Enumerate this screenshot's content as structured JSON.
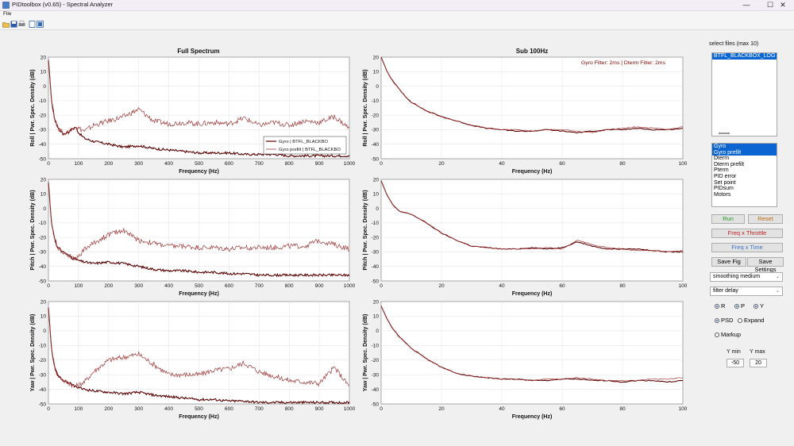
{
  "window": {
    "title": "PIDtoolbox (v0.65) - Spectral Analyzer",
    "minimize": "—",
    "maximize": "☐",
    "close": "✕"
  },
  "menu": {
    "file": "File"
  },
  "toolbar": {
    "icons": [
      "open-icon",
      "save-icon",
      "print-icon",
      "link-plot-icon",
      "dock-icon"
    ]
  },
  "plots": {
    "full_title": "Full Spectrum",
    "sub_title": "Sub 100Hz",
    "xlabel": "Frequency (Hz)",
    "ylabels": [
      "Roll  |  Pwr. Spec. Density (dB)",
      "Pitch  |  Pwr. Spec. Density (dB)",
      "Yaw  |  Pwr. Spec. Density (dB)"
    ],
    "filter_note": "Gyro Filter: 2ms | Dterm Filter: 2ms",
    "legend": [
      "Gyro | BTFL_BLACKBO",
      "Gyro prefilt | BTFL_BLACKBO"
    ],
    "full_xticks": [
      "0",
      "100",
      "200",
      "300",
      "400",
      "500",
      "600",
      "700",
      "800",
      "900",
      "1000"
    ],
    "sub_xticks": [
      "0",
      "20",
      "40",
      "60",
      "80",
      "100"
    ],
    "yticks": [
      "20",
      "10",
      "0",
      "-10",
      "-20",
      "-30",
      "-40",
      "-50"
    ]
  },
  "colors": {
    "gyro": "#5a0000",
    "prefilt": "#a03838",
    "selected": "#0a64d2",
    "run": "#1f9a1f",
    "reset": "#c06a10",
    "freq_throttle": "#c41e1e",
    "freq_time": "#3f73c8"
  },
  "chart_data": [
    {
      "type": "line",
      "title": "Full Spectrum",
      "xlabel": "Frequency (Hz)",
      "ylabel": "Roll  |  Pwr. Spec. Density (dB)",
      "xlim": [
        0,
        1000
      ],
      "ylim": [
        -50,
        20
      ],
      "grid": true,
      "legend": "bottom-right",
      "x": [
        0,
        5,
        10,
        20,
        30,
        50,
        70,
        90,
        100,
        120,
        150,
        200,
        250,
        300,
        350,
        400,
        450,
        500,
        550,
        600,
        650,
        700,
        750,
        800,
        850,
        900,
        950,
        1000
      ],
      "series": [
        {
          "name": "Gyro | BTFL_BLACKBO",
          "values": [
            18,
            5,
            -10,
            -22,
            -28,
            -33,
            -31,
            -28,
            -32,
            -36,
            -38,
            -40,
            -42,
            -41,
            -43,
            -44,
            -45,
            -46,
            -46,
            -46,
            -47,
            -47,
            -47,
            -48,
            -48,
            -48,
            -48,
            -48
          ]
        },
        {
          "name": "Gyro prefilt | BTFL_BLACKBO",
          "values": [
            18,
            5,
            -10,
            -22,
            -28,
            -33,
            -31,
            -27,
            -29,
            -31,
            -27,
            -24,
            -21,
            -16,
            -24,
            -26,
            -25,
            -26,
            -25,
            -26,
            -22,
            -27,
            -25,
            -27,
            -24,
            -25,
            -21,
            -29
          ]
        }
      ]
    },
    {
      "type": "line",
      "title": "Sub 100Hz",
      "xlabel": "Frequency (Hz)",
      "ylabel": "",
      "xlim": [
        0,
        100
      ],
      "ylim": [
        -50,
        20
      ],
      "grid": true,
      "x": [
        0,
        2,
        4,
        6,
        8,
        10,
        15,
        20,
        25,
        30,
        35,
        40,
        45,
        50,
        55,
        60,
        65,
        70,
        75,
        80,
        85,
        90,
        95,
        100
      ],
      "series": [
        {
          "name": "Gyro",
          "values": [
            20,
            10,
            3,
            -2,
            -7,
            -11,
            -17,
            -21,
            -24,
            -27,
            -29,
            -30,
            -31,
            -31,
            -30,
            -31,
            -32,
            -31,
            -30,
            -30,
            -29,
            -30,
            -30,
            -29
          ]
        },
        {
          "name": "Gyro prefilt",
          "values": [
            20,
            10,
            3,
            -2,
            -7,
            -11,
            -17,
            -21,
            -24,
            -27,
            -29,
            -30,
            -30,
            -31,
            -30,
            -30,
            -31,
            -32,
            -30,
            -29,
            -28,
            -29,
            -30,
            -28
          ]
        }
      ]
    },
    {
      "type": "line",
      "title": "",
      "xlabel": "Frequency (Hz)",
      "ylabel": "Pitch  |  Pwr. Spec. Density (dB)",
      "xlim": [
        0,
        1000
      ],
      "ylim": [
        -50,
        20
      ],
      "grid": true,
      "x": [
        0,
        5,
        10,
        20,
        30,
        50,
        70,
        90,
        100,
        120,
        150,
        200,
        250,
        300,
        350,
        400,
        450,
        500,
        550,
        600,
        650,
        700,
        750,
        800,
        850,
        900,
        950,
        1000
      ],
      "series": [
        {
          "name": "Gyro",
          "values": [
            18,
            4,
            -10,
            -20,
            -27,
            -30,
            -33,
            -35,
            -36,
            -37,
            -38,
            -37,
            -38,
            -40,
            -42,
            -43,
            -43,
            -44,
            -44,
            -45,
            -45,
            -46,
            -46,
            -46,
            -46,
            -46,
            -46,
            -46
          ]
        },
        {
          "name": "Gyro prefilt",
          "values": [
            18,
            4,
            -10,
            -20,
            -27,
            -30,
            -33,
            -35,
            -33,
            -28,
            -24,
            -18,
            -15,
            -22,
            -24,
            -26,
            -26,
            -27,
            -27,
            -28,
            -27,
            -27,
            -27,
            -26,
            -26,
            -22,
            -25,
            -28
          ]
        }
      ]
    },
    {
      "type": "line",
      "title": "",
      "xlabel": "Frequency (Hz)",
      "ylabel": "",
      "xlim": [
        0,
        100
      ],
      "ylim": [
        -50,
        20
      ],
      "grid": true,
      "x": [
        0,
        2,
        4,
        6,
        8,
        10,
        15,
        20,
        25,
        30,
        35,
        40,
        45,
        50,
        55,
        60,
        65,
        70,
        75,
        80,
        85,
        90,
        95,
        100
      ],
      "series": [
        {
          "name": "Gyro",
          "values": [
            19,
            9,
            2,
            -2,
            -3,
            -4,
            -10,
            -17,
            -22,
            -26,
            -27,
            -28,
            -28,
            -27,
            -28,
            -27,
            -23,
            -26,
            -28,
            -28,
            -28,
            -29,
            -30,
            -30
          ]
        },
        {
          "name": "Gyro prefilt",
          "values": [
            19,
            9,
            2,
            -2,
            -3,
            -4,
            -10,
            -17,
            -22,
            -26,
            -27,
            -28,
            -28,
            -28,
            -27,
            -28,
            -22,
            -25,
            -27,
            -28,
            -29,
            -29,
            -30,
            -29
          ]
        }
      ]
    },
    {
      "type": "line",
      "title": "",
      "xlabel": "Frequency (Hz)",
      "ylabel": "Yaw  |  Pwr. Spec. Density (dB)",
      "xlim": [
        0,
        1000
      ],
      "ylim": [
        -50,
        20
      ],
      "grid": true,
      "x": [
        0,
        5,
        10,
        20,
        30,
        50,
        70,
        90,
        100,
        120,
        150,
        200,
        250,
        300,
        350,
        400,
        450,
        500,
        550,
        600,
        650,
        700,
        750,
        800,
        850,
        900,
        950,
        1000
      ],
      "series": [
        {
          "name": "Gyro",
          "values": [
            16,
            2,
            -12,
            -24,
            -30,
            -34,
            -36,
            -38,
            -39,
            -40,
            -41,
            -42,
            -43,
            -42,
            -44,
            -45,
            -46,
            -47,
            -47,
            -48,
            -48,
            -49,
            -49,
            -49,
            -49,
            -49,
            -49,
            -49
          ]
        },
        {
          "name": "Gyro prefilt",
          "values": [
            16,
            2,
            -12,
            -24,
            -30,
            -34,
            -36,
            -38,
            -37,
            -35,
            -28,
            -20,
            -18,
            -16,
            -23,
            -30,
            -30,
            -30,
            -27,
            -26,
            -22,
            -28,
            -31,
            -34,
            -35,
            -36,
            -25,
            -38
          ]
        }
      ]
    },
    {
      "type": "line",
      "title": "",
      "xlabel": "Frequency (Hz)",
      "ylabel": "",
      "xlim": [
        0,
        100
      ],
      "ylim": [
        -50,
        20
      ],
      "grid": true,
      "x": [
        0,
        2,
        4,
        6,
        8,
        10,
        15,
        20,
        25,
        30,
        35,
        40,
        45,
        50,
        55,
        60,
        65,
        70,
        75,
        80,
        85,
        90,
        95,
        100
      ],
      "series": [
        {
          "name": "Gyro",
          "values": [
            17,
            8,
            1,
            -4,
            -8,
            -12,
            -19,
            -25,
            -29,
            -31,
            -32,
            -33,
            -33,
            -34,
            -34,
            -33,
            -33,
            -34,
            -34,
            -35,
            -34,
            -34,
            -35,
            -34
          ]
        },
        {
          "name": "Gyro prefilt",
          "values": [
            17,
            8,
            1,
            -4,
            -8,
            -12,
            -19,
            -25,
            -29,
            -31,
            -32,
            -33,
            -33,
            -34,
            -33,
            -33,
            -32,
            -33,
            -34,
            -34,
            -34,
            -33,
            -33,
            -32
          ]
        }
      ]
    }
  ],
  "side": {
    "files_label": "select files (max 10)",
    "files": [
      "BTFL_BLACKBOX_LOG"
    ],
    "signals": [
      "Gyro",
      "Gyro prefilt",
      "Dterm",
      "Dterm prefilt",
      "Pterm",
      "PID error",
      "Set point",
      "PIDsum",
      "Motors"
    ],
    "signals_selected": [
      0,
      1
    ],
    "run": "Run",
    "reset": "Reset",
    "freq_throttle": "Freq x Throttle",
    "freq_time": "Freq x Time",
    "save_fig": "Save Fig",
    "save_settings": "Save Settings",
    "smoothing": "smoothing medium",
    "delay": "filter delay",
    "axes_r": "R",
    "axes_p": "P",
    "axes_y": "Y",
    "psd": "PSD",
    "expand": "Expand",
    "markup": "Markup",
    "ymin_label": "Y min",
    "ymax_label": "Y max",
    "ymin": "-50",
    "ymax": "20"
  }
}
